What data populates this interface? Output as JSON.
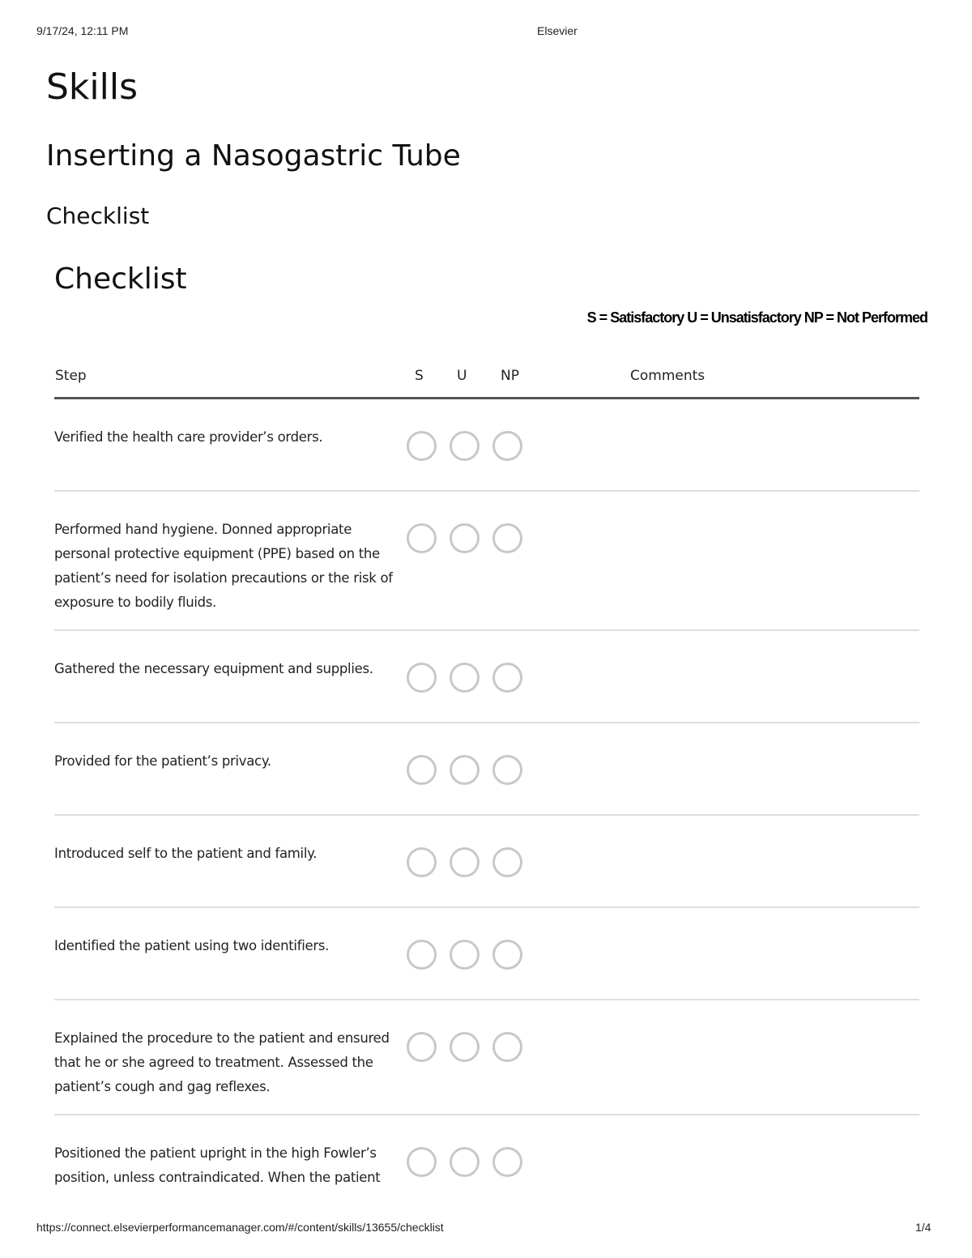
{
  "print_header": {
    "datetime": "9/17/24, 12:11 PM",
    "site": "Elsevier"
  },
  "print_footer": {
    "url": "https://connect.elsevierperformancemanager.com/#/content/skills/13655/checklist",
    "page": "1/4"
  },
  "titles": {
    "section": "Skills",
    "skill": "Inserting a Nasogastric Tube",
    "tab": "Checklist",
    "heading": "Checklist"
  },
  "legend": "S = Satisfactory U = Unsatisfactory NP = Not Performed",
  "table": {
    "columns": {
      "step": "Step",
      "s": "S",
      "u": "U",
      "np": "NP",
      "comments": "Comments"
    },
    "rows": [
      {
        "step": "Verified the health care provider’s orders.",
        "selected": null
      },
      {
        "step": "Performed hand hygiene. Donned appropriate personal protective equipment (PPE) based on the patient’s need for isolation precautions or the risk of exposure to bodily fluids.",
        "selected": null
      },
      {
        "step": "Gathered the necessary equipment and supplies.",
        "selected": null
      },
      {
        "step": "Provided for the patient’s privacy.",
        "selected": null
      },
      {
        "step": "Introduced self to the patient and family.",
        "selected": null
      },
      {
        "step": "Identified the patient using two identifiers.",
        "selected": null
      },
      {
        "step": "Explained the procedure to the patient and ensured that he or she agreed to treatment. Assessed the patient’s cough and gag reflexes.",
        "selected": null
      },
      {
        "step": "Positioned the patient upright in the high Fowler’s position, unless contraindicated. When the patient was comatose, raised the head of the bed into the",
        "selected": null
      }
    ]
  }
}
